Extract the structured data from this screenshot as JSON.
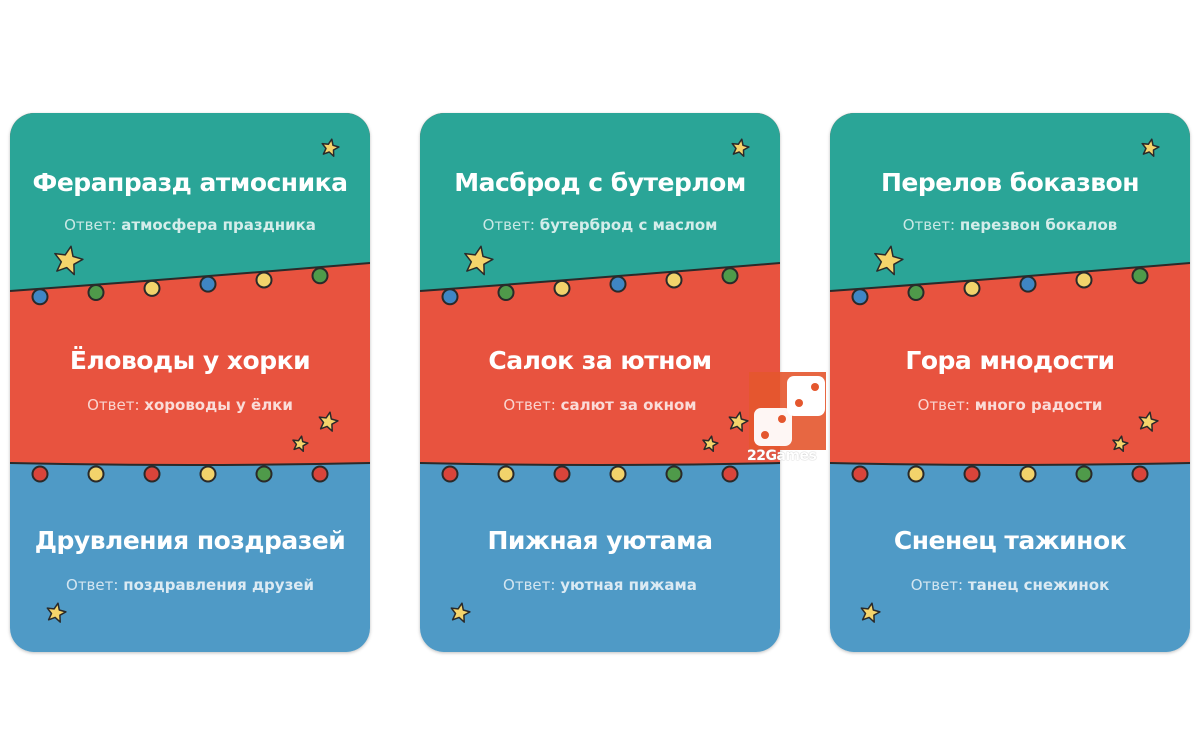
{
  "colors": {
    "teal": "#2aa597",
    "red": "#e8533f",
    "blue": "#4f9ac6",
    "star": "#f5d46b",
    "outline": "#2a2a2a",
    "logo": "#e4572e"
  },
  "answer_label": "Ответ:",
  "cards": [
    {
      "sections": [
        {
          "title": "Ферапразд атмосника",
          "answer": "атмосфера праздника"
        },
        {
          "title": "Ёловоды у хорки",
          "answer": "хороводы у ёлки"
        },
        {
          "title": "Друвления поздразей",
          "answer": "поздравления друзей"
        }
      ]
    },
    {
      "sections": [
        {
          "title": "Масброд с бутерлом",
          "answer": "бутерброд с маслом"
        },
        {
          "title": "Салок за ютном",
          "answer": "салют за окном"
        },
        {
          "title": "Пижная уютама",
          "answer": "уютная пижама"
        }
      ]
    },
    {
      "sections": [
        {
          "title": "Перелов боказвон",
          "answer": "перезвон бокалов"
        },
        {
          "title": "Гора мнодости",
          "answer": "много радости"
        },
        {
          "title": "Сненец тажинок",
          "answer": "танец снежинок"
        }
      ]
    }
  ],
  "lights": {
    "row1": [
      "blue",
      "green",
      "yellow",
      "blue",
      "yellow",
      "green"
    ],
    "row2": [
      "red",
      "yellow",
      "red",
      "yellow",
      "green",
      "red"
    ]
  },
  "light_colors": {
    "blue": "#3f86c4",
    "green": "#4f9a4a",
    "yellow": "#f2d36b",
    "red": "#d9443a"
  },
  "logo": {
    "text": "22Games",
    "icon": "dice-icon"
  }
}
